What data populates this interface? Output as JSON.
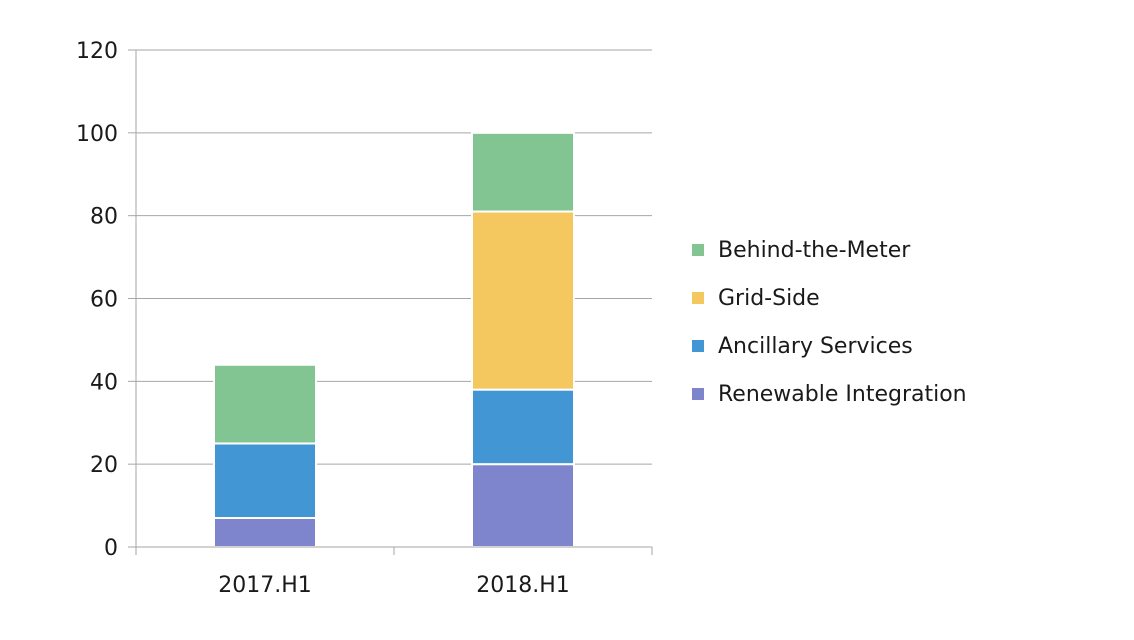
{
  "chart_data": {
    "type": "bar",
    "stacked": true,
    "categories": [
      "2017.H1",
      "2018.H1"
    ],
    "series": [
      {
        "name": "Renewable Integration",
        "color": "#7F85CC",
        "values": [
          7,
          20
        ]
      },
      {
        "name": "Ancillary Services",
        "color": "#4296D4",
        "values": [
          18,
          18
        ]
      },
      {
        "name": "Grid-Side",
        "color": "#F4C75F",
        "values": [
          0,
          43
        ]
      },
      {
        "name": "Behind-the-Meter",
        "color": "#83C493",
        "values": [
          19,
          19
        ]
      }
    ],
    "legend_order": [
      "Behind-the-Meter",
      "Grid-Side",
      "Ancillary Services",
      "Renewable Integration"
    ],
    "ylim": [
      0,
      120
    ],
    "yticks": [
      "0",
      "20",
      "40",
      "60",
      "80",
      "100",
      "120"
    ],
    "grid": true,
    "legend_position": "right"
  }
}
